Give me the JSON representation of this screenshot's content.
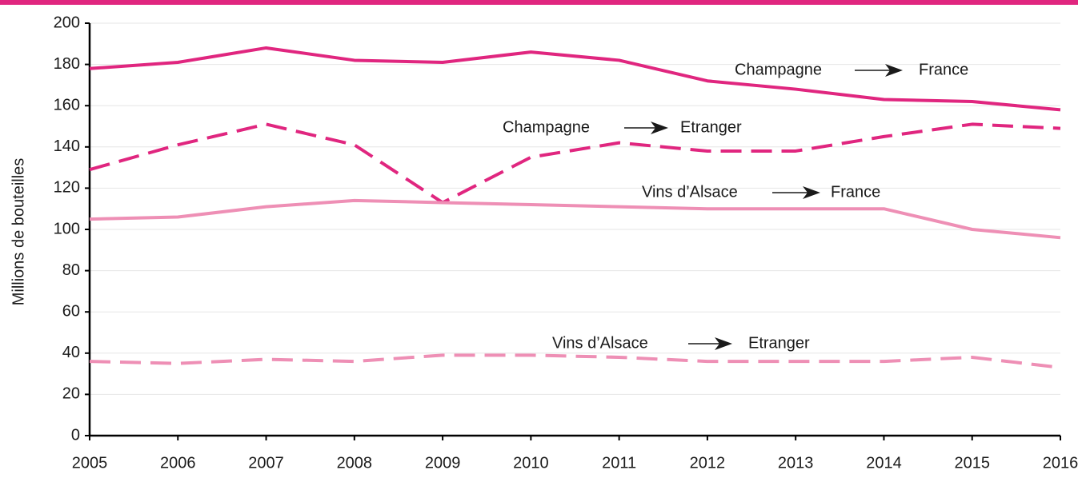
{
  "chart_data": {
    "type": "line",
    "y_label": "Millions de bouteilles",
    "x": [
      2005,
      2006,
      2007,
      2008,
      2009,
      2010,
      2011,
      2012,
      2013,
      2014,
      2015,
      2016
    ],
    "xlim": [
      2005,
      2016
    ],
    "xticks": [
      2005,
      2006,
      2007,
      2008,
      2009,
      2010,
      2011,
      2012,
      2013,
      2014,
      2015,
      2016
    ],
    "ylim": [
      0,
      200
    ],
    "yticks": [
      0,
      20,
      40,
      60,
      80,
      100,
      120,
      140,
      160,
      180,
      200
    ],
    "grid": true,
    "series": [
      {
        "name": "Champagne",
        "target": "France",
        "color": "#e0267f",
        "dashed": false,
        "values": [
          178,
          181,
          188,
          182,
          181,
          186,
          182,
          172,
          168,
          163,
          162,
          158
        ]
      },
      {
        "name": "Champagne",
        "target": "Etranger",
        "color": "#e0267f",
        "dashed": true,
        "values": [
          129,
          141,
          151,
          141,
          113,
          135,
          142,
          138,
          138,
          145,
          151,
          149
        ]
      },
      {
        "name": "Vins d’Alsace",
        "target": "France",
        "color": "#ee8fb5",
        "dashed": false,
        "values": [
          105,
          106,
          111,
          114,
          113,
          112,
          111,
          110,
          110,
          110,
          100,
          96
        ]
      },
      {
        "name": "Vins d’Alsace",
        "target": "Etranger",
        "color": "#ee8fb5",
        "dashed": true,
        "values": [
          36,
          35,
          37,
          36,
          39,
          39,
          38,
          36,
          36,
          36,
          38,
          33
        ]
      }
    ]
  }
}
